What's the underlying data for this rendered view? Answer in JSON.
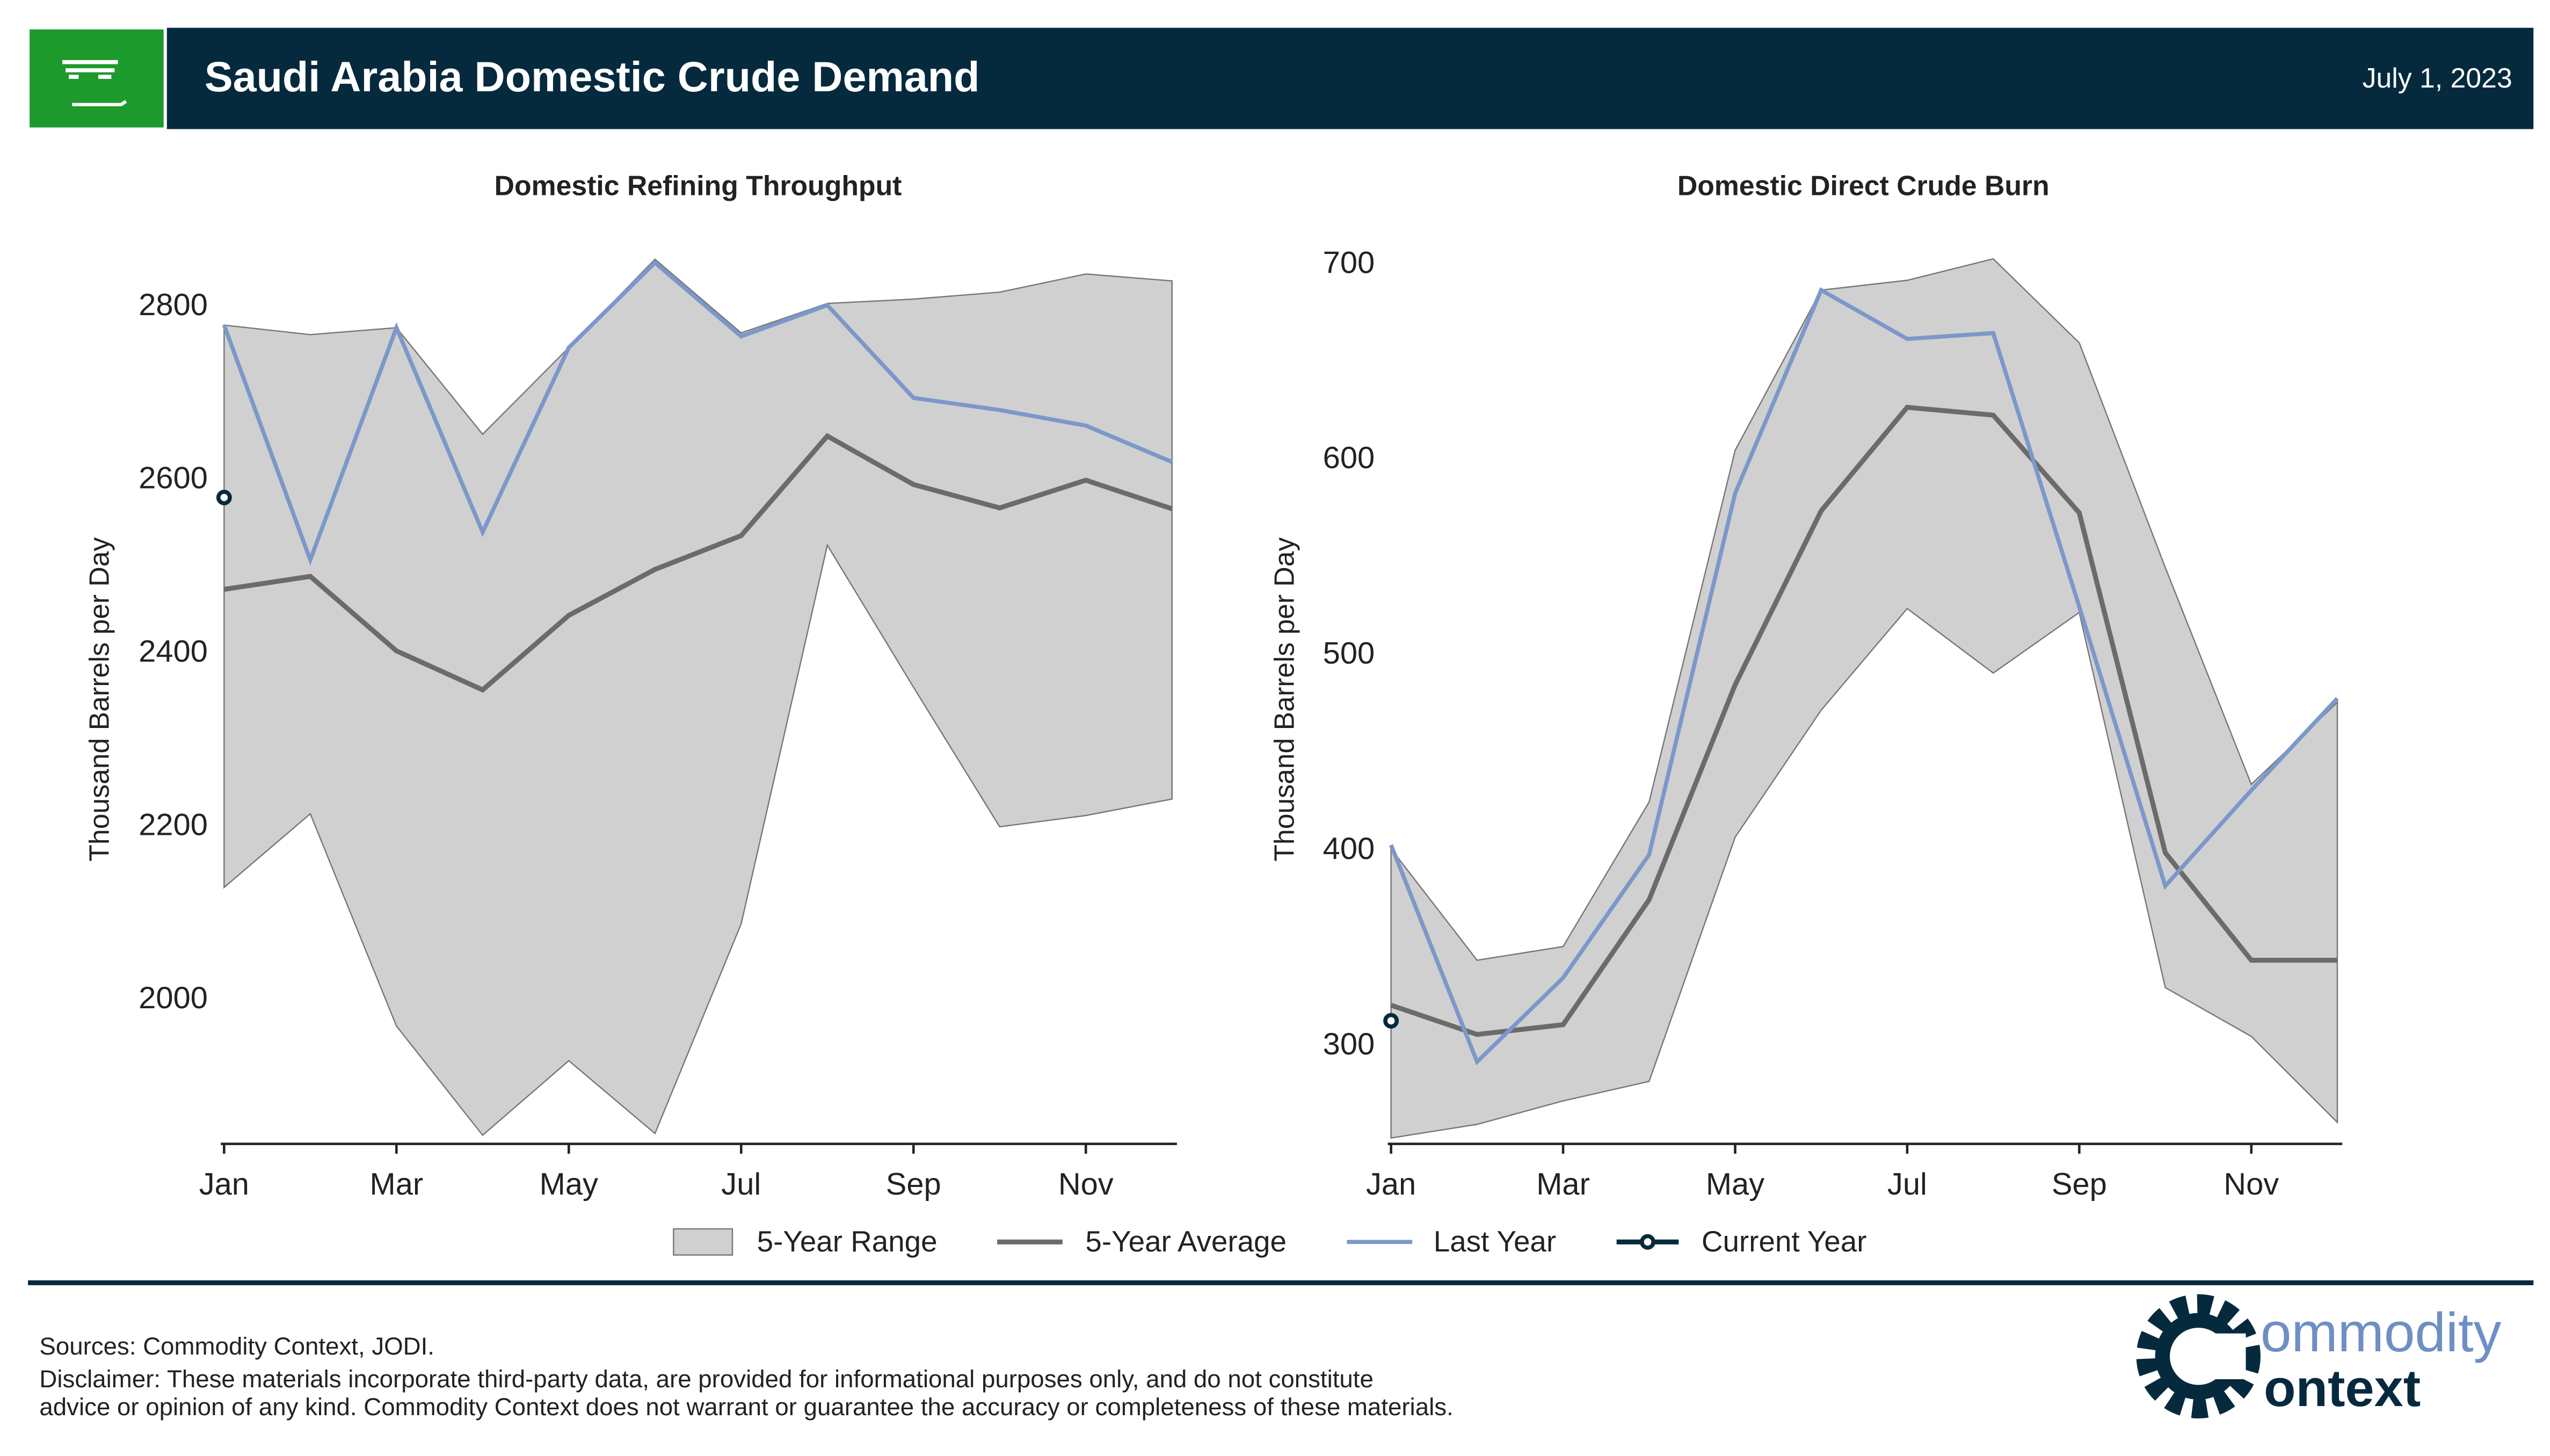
{
  "header": {
    "title": "Saudi Arabia Domestic Crude Demand",
    "date": "July 1, 2023"
  },
  "legend": [
    {
      "name": "5-Year Range",
      "color": "#d0d0d0"
    },
    {
      "name": "5-Year Average",
      "color": "#6b6b6b"
    },
    {
      "name": "Last Year",
      "color": "#7b98c9"
    },
    {
      "name": "Current Year",
      "color": "#062a3d"
    }
  ],
  "chart_data": [
    {
      "type": "line",
      "title": "Domestic Refining Throughput",
      "y_label": "Thousand Barrels per Day",
      "categories": [
        "Jan",
        null,
        "Mar",
        null,
        "May",
        null,
        "Jul",
        null,
        "Sep",
        null,
        "Nov",
        null
      ],
      "series": [
        {
          "low": [
            2130,
            2215,
            1970,
            1844,
            1930,
            1846,
            2088,
            2525,
            2361,
            2200,
            2213,
            2232
          ],
          "high": [
            2779,
            2768,
            2776,
            2653,
            2753,
            2855,
            2770,
            2804,
            2809,
            2817,
            2838,
            2830
          ]
        },
        {
          "values": [
            2474,
            2489,
            2403,
            2358,
            2444,
            2497,
            2536,
            2651,
            2595,
            2568,
            2600,
            2567
          ]
        },
        {
          "values": [
            2779,
            2508,
            2776,
            2540,
            2753,
            2851,
            2766,
            2802,
            2695,
            2681,
            2663,
            2621
          ]
        },
        {
          "values": [
            2580,
            null,
            null,
            null,
            null,
            null,
            null,
            null,
            null,
            null,
            null,
            null
          ]
        }
      ],
      "ylim": [
        1834,
        2860
      ],
      "yticks": [
        2000,
        2200,
        2400,
        2600,
        2800
      ],
      "grid": false
    },
    {
      "type": "line",
      "title": "Domestic Direct Crude Burn",
      "y_label": "Thousand Barrels per Day",
      "categories": [
        "Jan",
        null,
        "Mar",
        null,
        "May",
        null,
        "Jul",
        null,
        "Sep",
        null,
        "Nov",
        null
      ],
      "series": [
        {
          "low": [
            253,
            260,
            272,
            282,
            407,
            472,
            524,
            491,
            522,
            330,
            305,
            261
          ],
          "high": [
            401,
            344,
            351,
            425,
            605,
            687,
            692,
            703,
            660,
            545,
            434,
            476
          ]
        },
        {
          "values": [
            321,
            306,
            311,
            375,
            485,
            574,
            627,
            623,
            573,
            399,
            344,
            344
          ]
        },
        {
          "values": [
            403,
            292,
            335,
            398,
            583,
            687,
            662,
            665,
            525,
            382,
            431,
            478
          ]
        },
        {
          "values": [
            313,
            null,
            null,
            null,
            null,
            null,
            null,
            null,
            null,
            null,
            null,
            null
          ]
        }
      ],
      "ylim": [
        250,
        705
      ],
      "yticks": [
        300,
        400,
        500,
        600,
        700
      ],
      "grid": false
    }
  ],
  "footer": {
    "sources": "Sources: Commodity Context, JODI.",
    "disclaimer": [
      "Disclaimer: These materials incorporate third-party data, are provided for informational purposes only, and do not constitute",
      "advice or opinion of any kind. Commodity Context does not warrant or guarantee the accuracy or completeness of these materials."
    ]
  },
  "logo": {
    "line1": "ommodity",
    "line2": "ontext"
  }
}
